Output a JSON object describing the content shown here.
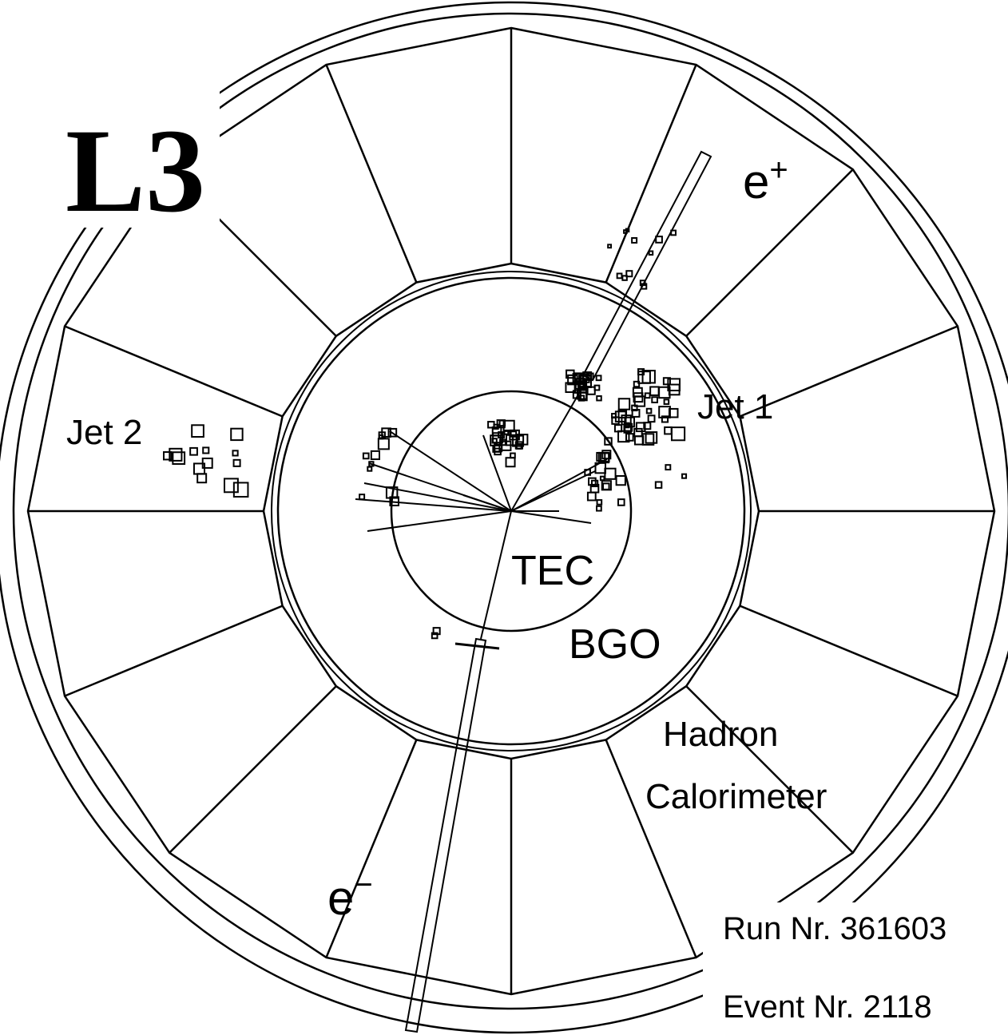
{
  "title": "L3",
  "labels": {
    "e_plus": {
      "text": "e",
      "sup": "+"
    },
    "jet_1": "Jet 1",
    "jet_2": "Jet 2",
    "tec": "TEC",
    "bgo": "BGO",
    "hadron_calorimeter": [
      "Hadron",
      "Calorimeter"
    ],
    "e_minus": {
      "text": "e",
      "sup": "−"
    }
  },
  "run": "Run Nr. 361603",
  "event": "Event Nr. 2118"
}
